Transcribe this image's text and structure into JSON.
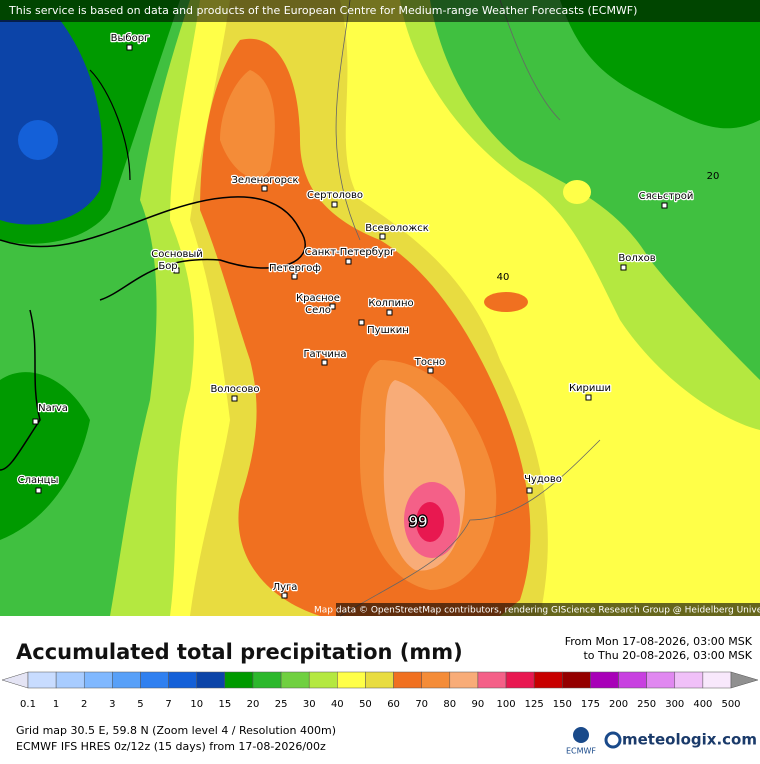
{
  "header": {
    "notice": "This service is based on data and products of the European Centre for Medium-range Weather Forecasts (ECMWF)"
  },
  "map": {
    "cities": [
      "Выборг",
      "Зеленогорск",
      "Сертолово",
      "Всеволожск",
      "Санкт-Петербург",
      "Сосновый",
      "Бор",
      "Петергоф",
      "Красное",
      "Село",
      "Колпино",
      "Пушкин",
      "Гатчина",
      "Тосно",
      "Волосово",
      "Narva",
      "Сланцы",
      "Луга",
      "Чудово",
      "Кириши",
      "Волхов",
      "Сясьстрой"
    ],
    "contour_labels": [
      "40",
      "20"
    ],
    "max_value": "99",
    "attribution": "Map data © OpenStreetMap contributors, rendering GIScience Research Group @ Heidelberg University"
  },
  "footer": {
    "title": "Accumulated total precipitation (mm)",
    "from": "From Mon 17-08-2026, 03:00 MSK",
    "to": "to Thu 20-08-2026, 03:00 MSK",
    "colorbar": {
      "ticks": [
        "0.1",
        "1",
        "2",
        "3",
        "5",
        "7",
        "10",
        "15",
        "20",
        "25",
        "30",
        "40",
        "50",
        "60",
        "70",
        "80",
        "90",
        "100",
        "125",
        "150",
        "175",
        "200",
        "250",
        "300",
        "400",
        "500"
      ],
      "colors": [
        "#e4e4f4",
        "#c8dcff",
        "#a8ccff",
        "#80b8ff",
        "#58a0f8",
        "#3080f0",
        "#1460d8",
        "#0c44a8",
        "#009a00",
        "#2cb82c",
        "#70d040",
        "#b4e840",
        "#ffff48",
        "#e8dc40",
        "#f07020",
        "#f48c38",
        "#f8ac78",
        "#f46088",
        "#e81850",
        "#c80000",
        "#940000",
        "#a800b8",
        "#c840e0",
        "#e088f0",
        "#f0c0f8",
        "#f8e8fc",
        "#d0d0d0",
        "#909090"
      ]
    },
    "grid": "Grid map 30.5 E, 59.8 N (Zoom level 4 / Resolution 400m)",
    "model": "ECMWF IFS HRES 0z/12z (15 days) from 17-08-2026/00z",
    "ecmwf_logo": "ECMWF",
    "brand": "meteologix.com"
  }
}
